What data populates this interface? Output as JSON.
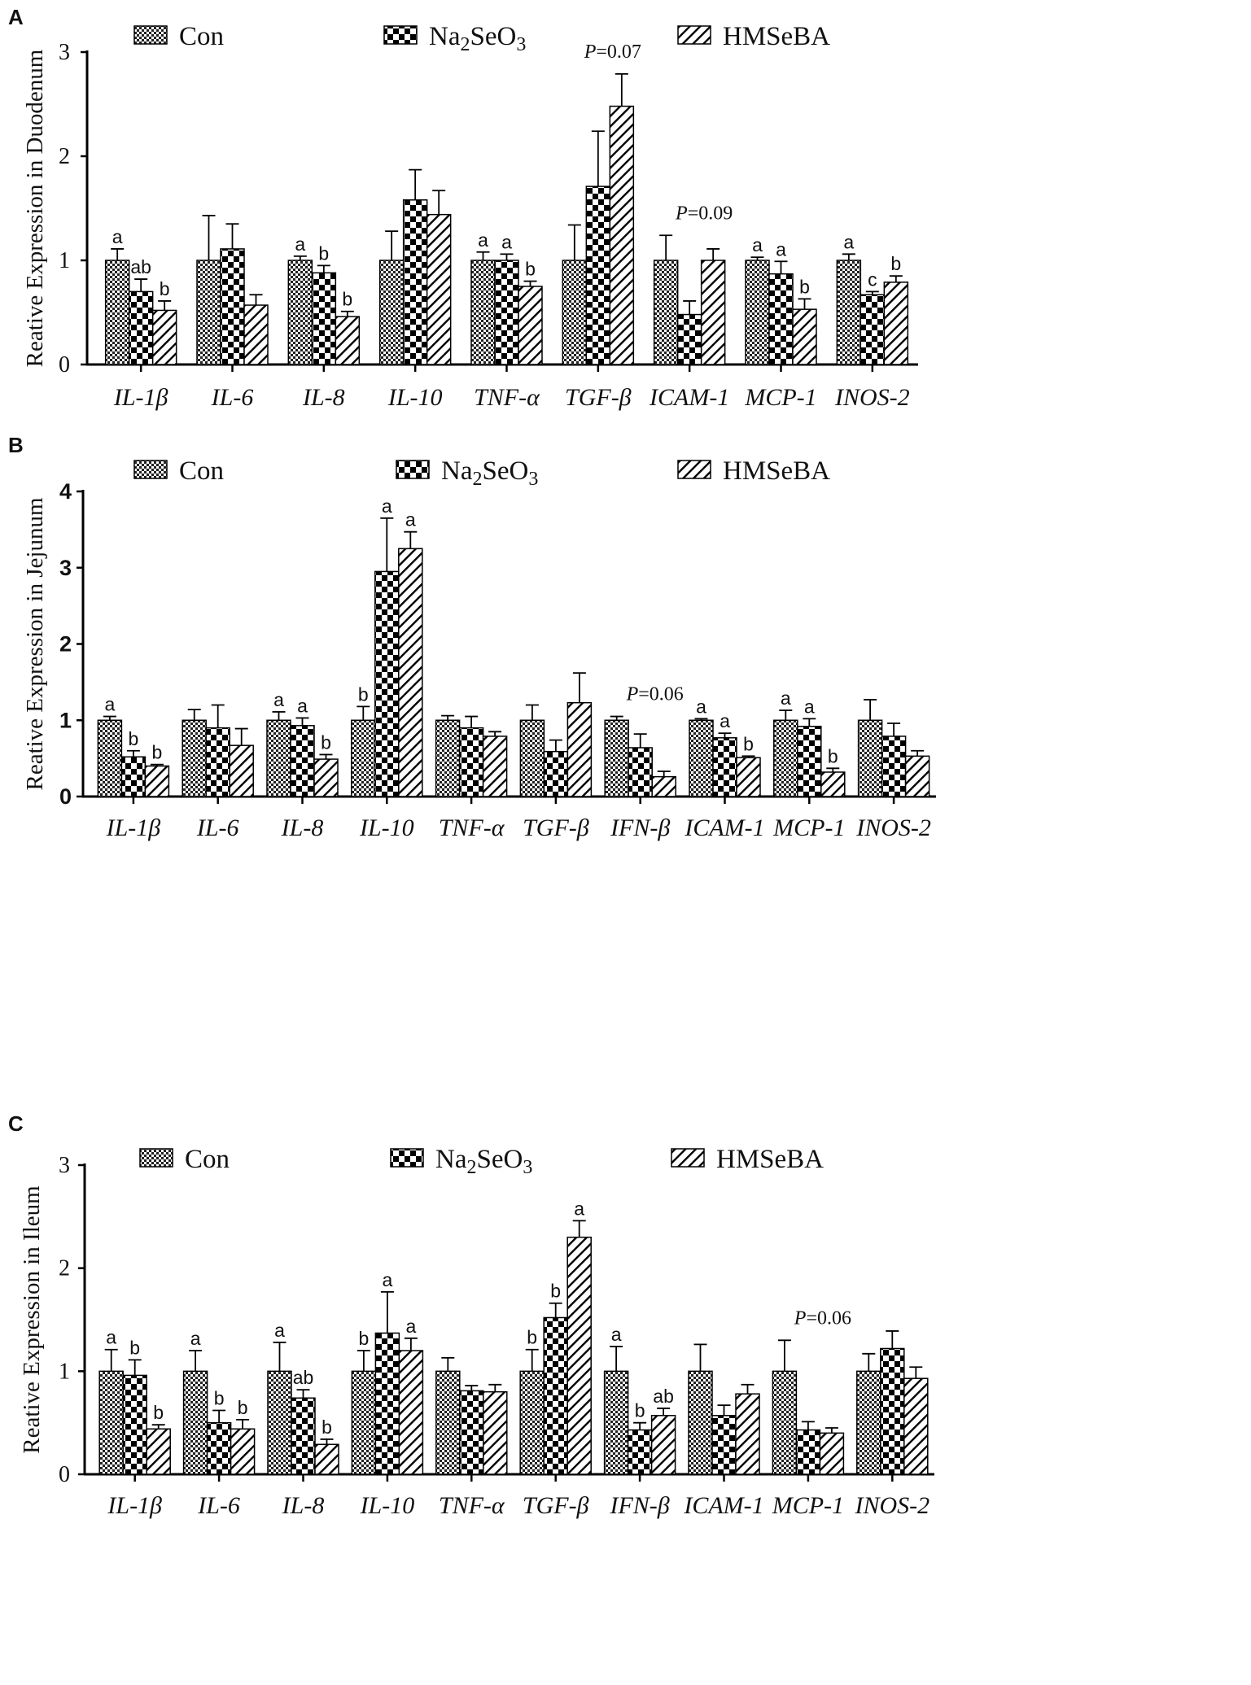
{
  "legend": [
    {
      "key": "con",
      "label": "Con"
    },
    {
      "key": "na",
      "label": "Na2SeO3",
      "base": "Na",
      "sub1": "2",
      "mid": "SeO",
      "sub2": "3"
    },
    {
      "key": "hm",
      "label": "HMSeBA"
    }
  ],
  "chart_data": [
    {
      "type": "bar",
      "panel": "A",
      "ylabel": "Reative  Expression in Duodenum",
      "ylim": [
        0,
        3
      ],
      "yticks": [
        "0",
        "1",
        "2",
        "3"
      ],
      "categories": [
        "IL-1β",
        "IL-6",
        "IL-8",
        "IL-10",
        "TNF-α",
        "TGF-β",
        "ICAM-1",
        "MCP-1",
        "INOS-2"
      ],
      "series": [
        {
          "name": "Con",
          "values": [
            1.0,
            1.0,
            1.0,
            1.0,
            1.0,
            1.0,
            1.0,
            1.0,
            1.0
          ],
          "errors": [
            0.11,
            0.43,
            0.04,
            0.28,
            0.08,
            0.34,
            0.24,
            0.03,
            0.06
          ],
          "letters": [
            "a",
            "",
            "a",
            "",
            "a",
            "",
            "",
            "a",
            "a"
          ]
        },
        {
          "name": "Na2SeO3",
          "values": [
            0.7,
            1.11,
            0.88,
            1.58,
            1.0,
            1.71,
            0.48,
            0.87,
            0.67
          ],
          "errors": [
            0.12,
            0.24,
            0.07,
            0.29,
            0.06,
            0.53,
            0.13,
            0.12,
            0.03
          ],
          "letters": [
            "ab",
            "",
            "b",
            "",
            "a",
            "",
            "",
            "a",
            "c"
          ]
        },
        {
          "name": "HMSeBA",
          "values": [
            0.52,
            0.57,
            0.46,
            1.44,
            0.75,
            2.48,
            1.0,
            0.53,
            0.79
          ],
          "errors": [
            0.09,
            0.1,
            0.05,
            0.23,
            0.05,
            0.31,
            0.11,
            0.1,
            0.06
          ],
          "letters": [
            "b",
            "",
            "b",
            "",
            "b",
            "",
            "",
            "b",
            "b"
          ]
        }
      ],
      "annotations": [
        {
          "category": "TGF-β",
          "italic": "P",
          "rest": "=0.07"
        },
        {
          "category": "ICAM-1",
          "italic": "P",
          "rest": "=0.09"
        }
      ]
    },
    {
      "type": "bar",
      "panel": "B",
      "ylabel": "Reative  Expression in Jejunum",
      "ylim": [
        0,
        4
      ],
      "yticks": [
        "0",
        "1",
        "2",
        "3",
        "4"
      ],
      "categories": [
        "IL-1β",
        "IL-6",
        "IL-8",
        "IL-10",
        "TNF-α",
        "TGF-β",
        "IFN-β",
        "ICAM-1",
        "MCP-1",
        "INOS-2"
      ],
      "series": [
        {
          "name": "Con",
          "values": [
            1.0,
            1.0,
            1.0,
            1.0,
            1.0,
            1.0,
            1.0,
            1.0,
            1.0,
            1.0
          ],
          "errors": [
            0.05,
            0.14,
            0.11,
            0.18,
            0.06,
            0.2,
            0.05,
            0.02,
            0.13,
            0.27
          ],
          "letters": [
            "a",
            "",
            "a",
            "b",
            "",
            "",
            "",
            "a",
            "a",
            ""
          ]
        },
        {
          "name": "Na2SeO3",
          "values": [
            0.52,
            0.9,
            0.93,
            2.95,
            0.9,
            0.59,
            0.64,
            0.77,
            0.92,
            0.79
          ],
          "errors": [
            0.08,
            0.3,
            0.1,
            0.7,
            0.15,
            0.15,
            0.18,
            0.06,
            0.1,
            0.17
          ],
          "letters": [
            "b",
            "",
            "a",
            "a",
            "",
            "",
            "",
            "a",
            "a",
            ""
          ]
        },
        {
          "name": "HMSeBA",
          "values": [
            0.4,
            0.67,
            0.49,
            3.25,
            0.79,
            1.23,
            0.26,
            0.51,
            0.32,
            0.53
          ],
          "errors": [
            0.02,
            0.22,
            0.06,
            0.22,
            0.06,
            0.39,
            0.07,
            0.02,
            0.05,
            0.07
          ],
          "letters": [
            "b",
            "",
            "b",
            "a",
            "",
            "",
            "",
            "b",
            "b",
            ""
          ]
        }
      ],
      "annotations": [
        {
          "category": "IFN-β",
          "italic": "P",
          "rest": "=0.06"
        }
      ]
    },
    {
      "type": "bar",
      "panel": "C",
      "ylabel": "Reative Expression in Ileum",
      "ylim": [
        0,
        3
      ],
      "yticks": [
        "0",
        "1",
        "2",
        "3"
      ],
      "categories": [
        "IL-1β",
        "IL-6",
        "IL-8",
        "IL-10",
        "TNF-α",
        "TGF-β",
        "IFN-β",
        "ICAM-1",
        "MCP-1",
        "INOS-2"
      ],
      "series": [
        {
          "name": "Con",
          "values": [
            1.0,
            1.0,
            1.0,
            1.0,
            1.0,
            1.0,
            1.0,
            1.0,
            1.0,
            1.0
          ],
          "errors": [
            0.21,
            0.2,
            0.28,
            0.2,
            0.13,
            0.21,
            0.24,
            0.26,
            0.3,
            0.17
          ],
          "letters": [
            "a",
            "a",
            "a",
            "b",
            "",
            "b",
            "a",
            "",
            "",
            ""
          ]
        },
        {
          "name": "Na2SeO3",
          "values": [
            0.96,
            0.5,
            0.74,
            1.37,
            0.81,
            1.52,
            0.43,
            0.57,
            0.43,
            1.22
          ],
          "errors": [
            0.15,
            0.12,
            0.08,
            0.4,
            0.05,
            0.14,
            0.07,
            0.1,
            0.08,
            0.17
          ],
          "letters": [
            "b",
            "b",
            "ab",
            "a",
            "",
            "b",
            "b",
            "",
            "",
            ""
          ]
        },
        {
          "name": "HMSeBA",
          "values": [
            0.44,
            0.44,
            0.29,
            1.2,
            0.8,
            2.3,
            0.57,
            0.78,
            0.4,
            0.93
          ],
          "errors": [
            0.04,
            0.09,
            0.05,
            0.12,
            0.07,
            0.16,
            0.07,
            0.09,
            0.05,
            0.11
          ],
          "letters": [
            "b",
            "b",
            "b",
            "a",
            "",
            "a",
            "ab",
            "",
            "",
            ""
          ]
        }
      ],
      "annotations": [
        {
          "category": "MCP-1",
          "italic": "P",
          "rest": "=0.06"
        }
      ]
    }
  ]
}
